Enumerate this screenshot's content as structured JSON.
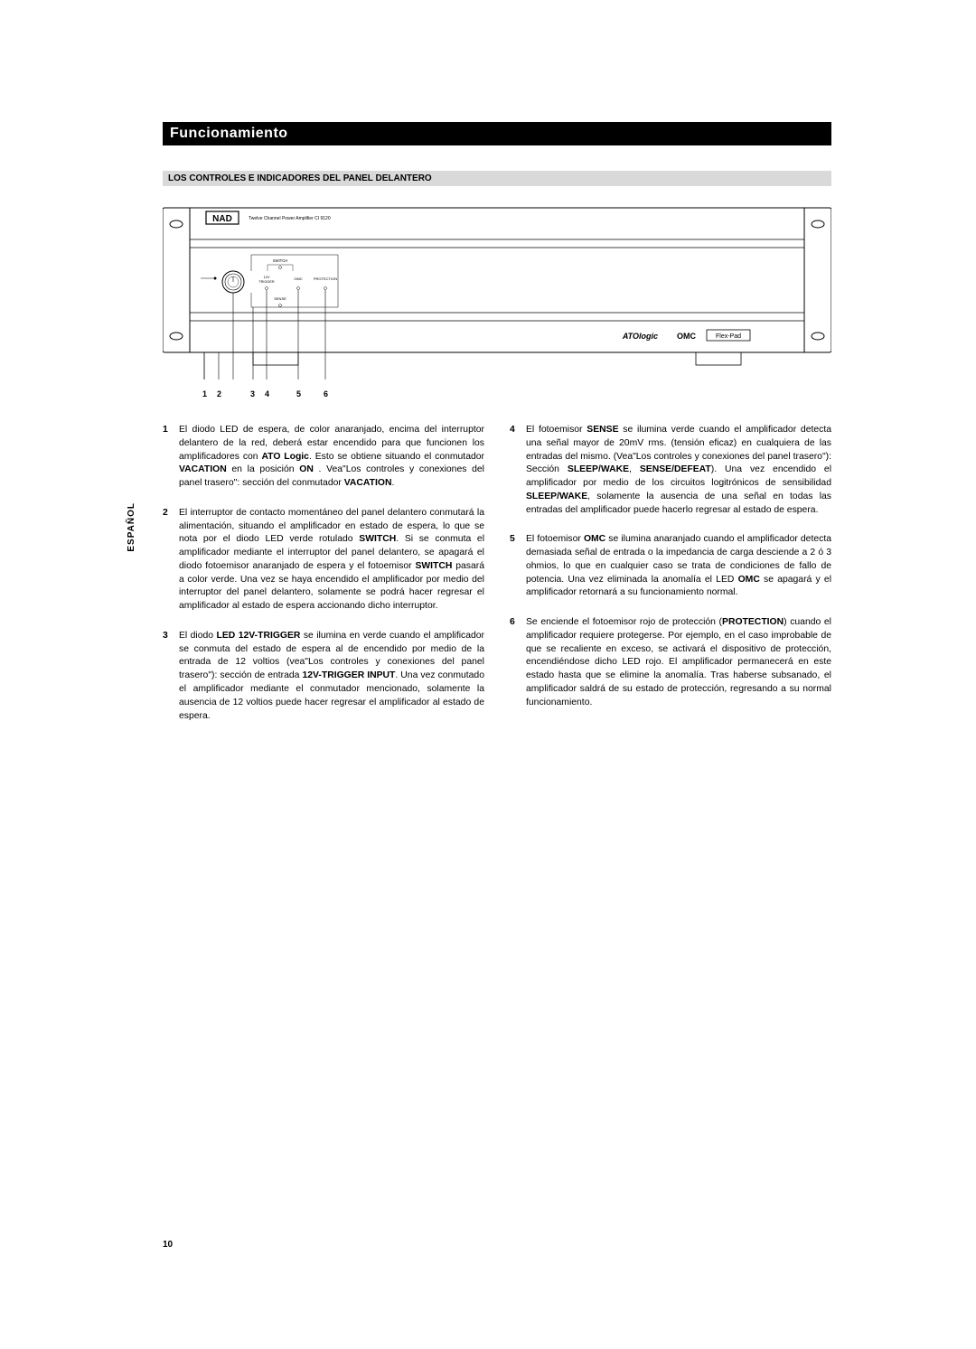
{
  "title": "Funcionamiento",
  "subtitle": "LOS CONTROLES E INDICADORES DEL PANEL DELANTERO",
  "langTab": "ESPAÑOL",
  "pageNumber": "10",
  "diagram": {
    "brand": "NAD",
    "model": "Twelve Channel Power Amplifier CI 9120",
    "labels": {
      "switch": "SWITCH",
      "trigger": "12V\nTRIGGER",
      "omc": "OMC",
      "protection": "PROTECTION",
      "sense": "SENSE",
      "logoMain": "ATOlogic",
      "logoOmc": "OMC",
      "logoFlex": "Flex-Pad"
    },
    "callouts": [
      "1",
      "2",
      "3",
      "4",
      "5",
      "6"
    ]
  },
  "items": {
    "c1": {
      "n": "1",
      "parts": [
        "El diodo LED de espera, de color anaranjado, encima del interruptor delantero de la red, deberá estar encendido para que funcionen los amplificadores con ",
        "ATO Logic",
        ". Esto se obtiene situando el conmutador ",
        "VACATION",
        " en la posición ",
        "ON",
        " . Vea\"Los controles y conexiones del panel trasero\": sección del conmutador ",
        "VACATION",
        "."
      ]
    },
    "c2": {
      "n": "2",
      "parts": [
        "El interruptor de contacto momentáneo del panel delantero conmutará la alimentación, situando el amplificador en estado de espera, lo que se nota por el diodo LED verde rotulado ",
        "SWITCH",
        ". Si se conmuta el amplificador mediante el interruptor del panel delantero, se apagará el diodo fotoemisor anaranjado de espera y el fotoemisor ",
        "SWITCH",
        " pasará a color verde. Una vez se haya encendido el amplificador por medio del interruptor del panel delantero, solamente se podrá hacer regresar el amplificador al estado de espera accionando dicho interruptor."
      ]
    },
    "c3": {
      "n": "3",
      "parts": [
        "El diodo ",
        "LED 12V-TRIGGER",
        " se ilumina en verde cuando el amplificador se conmuta del estado de espera al de encendido por medio de la entrada de 12 voltios (vea\"Los controles y conexiones del panel trasero\"): sección de entrada ",
        "12V-TRIGGER INPUT",
        ". Una vez conmutado el amplificador mediante el conmutador mencionado, solamente la ausencia de 12 voltios puede hacer regresar el amplificador al estado de espera."
      ]
    },
    "c4": {
      "n": "4",
      "parts": [
        "El fotoemisor ",
        "SENSE",
        " se ilumina verde cuando el amplificador detecta una señal mayor de 20mV rms. (tensión eficaz) en cualquiera de las entradas del mismo. (Vea\"Los controles y conexiones del panel trasero\"): Sección ",
        "SLEEP/WAKE",
        ", ",
        "SENSE/DEFEAT",
        "). Una vez encendido el amplificador por medio de los circuitos logitrónicos de sensibilidad ",
        "SLEEP/WAKE",
        ", solamente la ausencia de una señal en todas las entradas del amplificador puede hacerlo regresar al estado de espera."
      ]
    },
    "c5": {
      "n": "5",
      "parts": [
        "El fotoemisor ",
        "OMC",
        " se ilumina anaranjado cuando el amplificador detecta demasiada señal de entrada o la impedancia de carga desciende a 2 ó 3 ohmios, lo que en cualquier caso se trata de condiciones de fallo de potencia. Una vez eliminada la anomalía el LED ",
        "OMC",
        " se apagará y el amplificador retornará a su funcionamiento normal."
      ]
    },
    "c6": {
      "n": "6",
      "parts": [
        "Se enciende el fotoemisor rojo de protección (",
        "PROTECTION",
        ") cuando el amplificador requiere protegerse. Por ejemplo, en el caso improbable de que se recaliente en exceso, se activará el dispositivo de protección, encendiéndose dicho LED rojo. El amplificador permanecerá en este estado hasta que se elimine la anomalía. Tras haberse subsanado, el amplificador saldrá de su estado de protección, regresando a su normal funcionamiento."
      ]
    }
  }
}
